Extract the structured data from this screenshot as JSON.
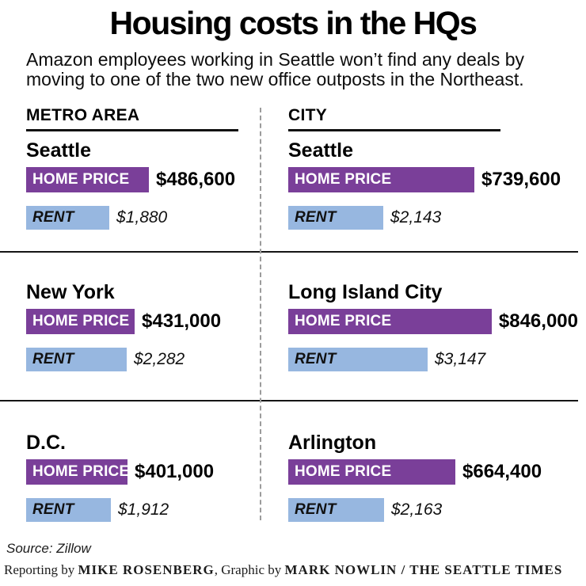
{
  "title": "Housing costs in the HQs",
  "subtitle": "Amazon employees working in Seattle won’t find any deals by moving to one of the two new office outposts in the Northeast.",
  "colors": {
    "home_bar": "#7a3f99",
    "rent_bar": "#97b7e0",
    "separator": "#151515",
    "divider": "#9c9c9c"
  },
  "chart_data": {
    "type": "bar",
    "orientation": "horizontal",
    "units": "USD",
    "bar_label_home": "HOME PRICE",
    "bar_label_rent": "RENT",
    "groups": [
      {
        "header": "METRO AREA",
        "rows": [
          {
            "name": "Seattle",
            "home_price": 486600,
            "home_price_label": "$486,600",
            "rent": 1880,
            "rent_label": "$1,880"
          },
          {
            "name": "New York",
            "home_price": 431000,
            "home_price_label": "$431,000",
            "rent": 2282,
            "rent_label": "$2,282"
          },
          {
            "name": "D.C.",
            "home_price": 401000,
            "home_price_label": "$401,000",
            "rent": 1912,
            "rent_label": "$1,912"
          }
        ]
      },
      {
        "header": "CITY",
        "rows": [
          {
            "name": "Seattle",
            "home_price": 739600,
            "home_price_label": "$739,600",
            "rent": 2143,
            "rent_label": "$2,143"
          },
          {
            "name": "Long Island City",
            "home_price": 846000,
            "home_price_label": "$846,000",
            "rent": 3147,
            "rent_label": "$3,147"
          },
          {
            "name": "Arlington",
            "home_price": 664400,
            "home_price_label": "$664,400",
            "rent": 2163,
            "rent_label": "$2,163"
          }
        ]
      }
    ]
  },
  "footer": {
    "source": "Source: Zillow",
    "credit": [
      {
        "text": "Reporting by ",
        "caps": false
      },
      {
        "text": "MIKE ROSENBERG",
        "caps": true
      },
      {
        "text": ", Graphic by ",
        "caps": false
      },
      {
        "text": "MARK NOWLIN",
        "caps": true
      },
      {
        "text": " / ",
        "caps": true
      },
      {
        "text": "THE SEATTLE TIMES",
        "caps": true
      }
    ]
  }
}
